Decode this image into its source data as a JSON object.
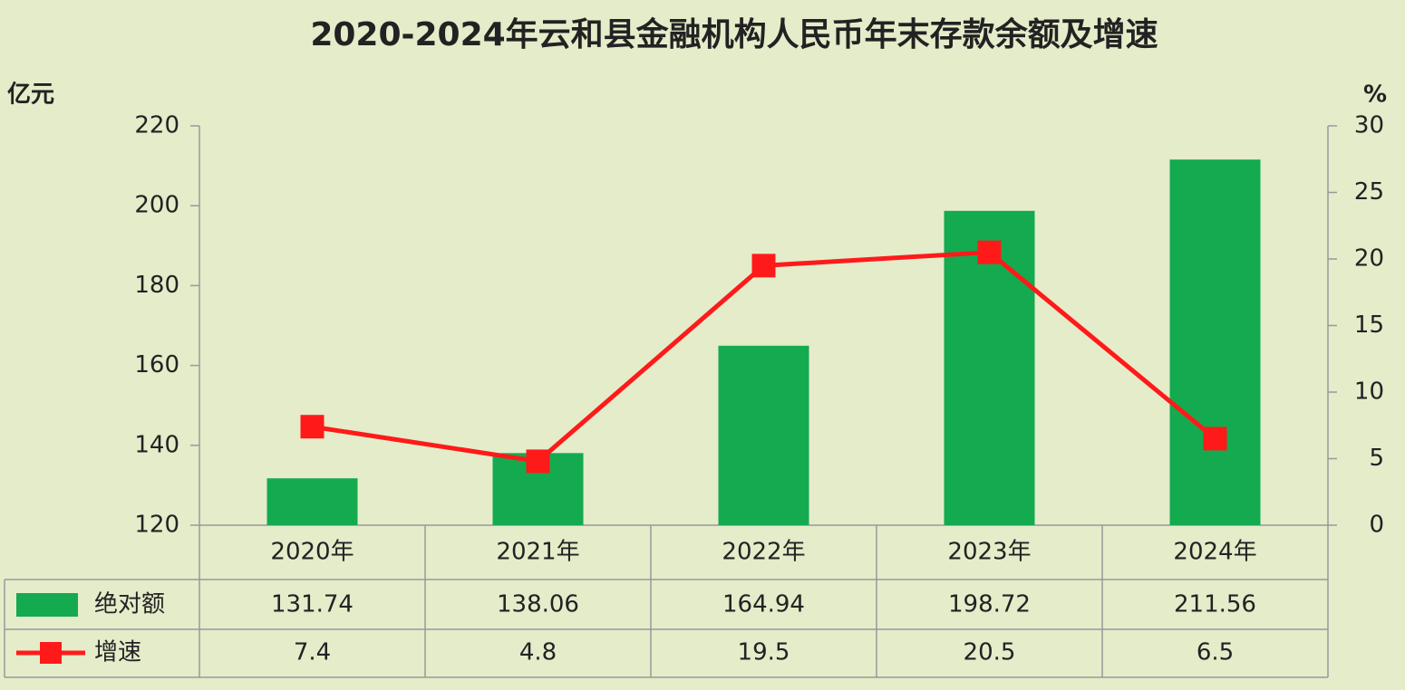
{
  "chart_data": {
    "type": "bar",
    "title": "2020-2024年云和县金融机构人民币年末存款余额及增速",
    "y_label": "亿元",
    "y2_label": "%",
    "categories": [
      "2020年",
      "2021年",
      "2022年",
      "2023年",
      "2024年"
    ],
    "series": [
      {
        "name": "绝对额",
        "type": "bar",
        "color": "#14aa50",
        "values": [
          131.74,
          138.06,
          164.94,
          198.72,
          211.56
        ]
      },
      {
        "name": "增速",
        "type": "line",
        "axis": "y2",
        "color": "#ff1a1a",
        "values": [
          7.4,
          4.8,
          19.5,
          20.5,
          6.5
        ]
      }
    ],
    "ylim": [
      120,
      220
    ],
    "yticks": [
      120,
      140,
      160,
      180,
      200,
      220
    ],
    "y2lim": [
      0,
      30
    ],
    "y2ticks": [
      0,
      5,
      10,
      15,
      20,
      25,
      30
    ],
    "grid": false
  }
}
